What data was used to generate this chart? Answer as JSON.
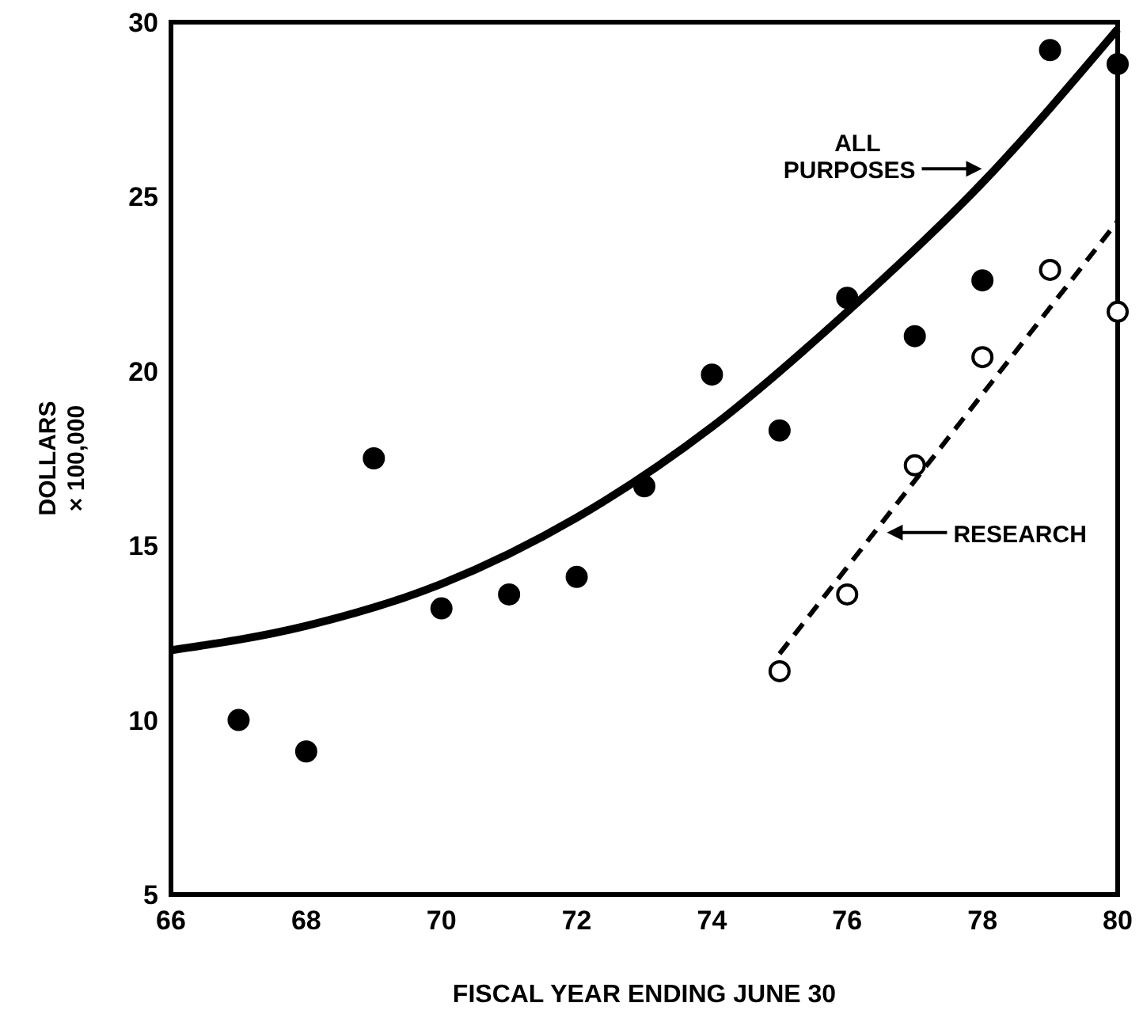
{
  "chart_data": {
    "type": "scatter",
    "xlabel": "FISCAL YEAR ENDING JUNE 30",
    "ylabel": "DOLLARS\n× 100,000",
    "xlim": [
      66,
      80
    ],
    "ylim": [
      5,
      30
    ],
    "xticks": [
      66,
      68,
      70,
      72,
      74,
      76,
      78,
      80
    ],
    "yticks": [
      5,
      10,
      15,
      20,
      25,
      30
    ],
    "grid": false,
    "series": [
      {
        "color": "#000000",
        "marker": "circle",
        "x": [
          67,
          68,
          69,
          70,
          71,
          72,
          73,
          74,
          75,
          76,
          77,
          78,
          79,
          80
        ],
        "values": [
          10.0,
          9.1,
          17.5,
          13.2,
          13.6,
          14.1,
          16.7,
          19.9,
          18.3,
          22.1,
          21.0,
          22.6,
          29.2,
          28.8
        ]
      },
      {
        "color": "#ffffff",
        "marker": "circle",
        "x": [
          75,
          76,
          77,
          78,
          79,
          80
        ],
        "values": [
          11.4,
          13.6,
          17.3,
          20.4,
          22.9,
          21.7
        ]
      },
      {
        "type": "line",
        "color": "#000000",
        "line_style": "solid",
        "marker": "none",
        "x": [
          66,
          68,
          70,
          72,
          74,
          76,
          78,
          80
        ],
        "values": [
          12.0,
          12.7,
          13.9,
          15.8,
          18.4,
          21.7,
          25.4,
          29.8
        ]
      },
      {
        "type": "line",
        "color": "#000000",
        "line_style": "dashed",
        "marker": "none",
        "x": [
          75,
          80
        ],
        "values": [
          11.9,
          24.3
        ]
      }
    ],
    "annotations": [
      "ALL\nPURPOSES",
      "RESEARCH"
    ]
  }
}
